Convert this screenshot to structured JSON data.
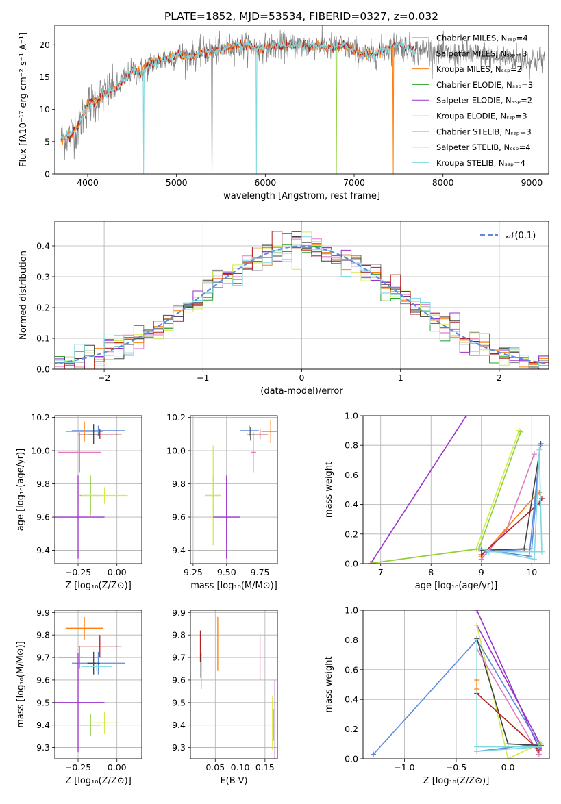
{
  "title": "PLATE=1852, MJD=53534, FIBERID=0327, z=0.032",
  "colors": {
    "Chabrier MILES": "#808080",
    "Salpeter MILES": "#e377c2",
    "Kroupa MILES": "#ff7f0e",
    "Chabrier ELODIE": "#2ca02c",
    "Salpeter ELODIE": "#9932cc",
    "Kroupa ELODIE": "#d4ec4a",
    "Chabrier STELIB": "#404040",
    "Salpeter STELIB": "#b22222",
    "Kroupa STELIB": "#7fd8e0",
    "blue": "#5b8bdc",
    "green": "#8fcf3c"
  },
  "chart_data": [
    {
      "id": "spectrum",
      "type": "line",
      "xlabel": "wavelength [Angstrom, rest frame]",
      "ylabel": "Flux [f$_\\lambda$10$^{-17}$ erg cm$^{-2}$ s$^{-1}$ A$^{-1}$]",
      "xlim": [
        3630,
        9190
      ],
      "ylim": [
        0,
        23
      ],
      "xticks": [
        4000,
        5000,
        6000,
        7000,
        8000,
        9000
      ],
      "yticks": [
        0,
        5,
        10,
        15,
        20
      ],
      "legend_loc": "upper right",
      "legend": [
        {
          "label": "Chabrier MILES, N$_{SSP}$=4",
          "color": "#808080"
        },
        {
          "label": "Salpeter MILES, N$_{SSP}$=3",
          "color": "#e377c2"
        },
        {
          "label": "Kroupa MILES, N$_{SSP}$=2",
          "color": "#ff7f0e"
        },
        {
          "label": "Chabrier ELODIE, N$_{SSP}$=3",
          "color": "#2ca02c"
        },
        {
          "label": "Salpeter ELODIE, N$_{SSP}$=2",
          "color": "#9932cc"
        },
        {
          "label": "Kroupa ELODIE, N$_{SSP}$=3",
          "color": "#d4ec4a"
        },
        {
          "label": "Chabrier STELIB, N$_{SSP}$=3",
          "color": "#404040"
        },
        {
          "label": "Salpeter STELIB, N$_{SSP}$=4",
          "color": "#b22222"
        },
        {
          "label": "Kroupa STELIB, N$_{SSP}$=4",
          "color": "#7fd8e0"
        }
      ],
      "continuum": {
        "x": [
          3700,
          3800,
          3900,
          4000,
          4100,
          4200,
          4300,
          4400,
          4500,
          4600,
          4700,
          4800,
          4900,
          5000,
          5100,
          5200,
          5300,
          5400,
          5500,
          5600,
          5700,
          5800,
          5900,
          6000,
          6100,
          6200,
          6300,
          6400,
          6500,
          6600,
          6700,
          6800,
          6900,
          7000,
          7100,
          7200,
          7300,
          7400,
          7500,
          7600,
          7700,
          7800,
          7900,
          8000,
          8100,
          8200,
          8300,
          8400,
          8500,
          8600,
          8700,
          8800,
          8900,
          9000,
          9100,
          9150
        ],
        "y": [
          5.5,
          6.0,
          7.5,
          10.8,
          11.5,
          12.5,
          13.0,
          14.5,
          15.8,
          15.8,
          17.0,
          17.4,
          17.8,
          18.5,
          18.3,
          18.2,
          18.9,
          19.0,
          19.2,
          19.6,
          19.8,
          20.0,
          19.3,
          19.5,
          19.7,
          19.8,
          19.8,
          19.9,
          19.7,
          19.9,
          19.6,
          19.7,
          19.8,
          19.2,
          18.5,
          18.3,
          19.0,
          19.6,
          20.0,
          19.6,
          19.0,
          19.3,
          19.0,
          18.8,
          18.2,
          18.5,
          18.6,
          18.2,
          18.3,
          18.0,
          17.9,
          18.1,
          17.7,
          17.6,
          17.8,
          17.5
        ]
      },
      "data_range": [
        3700,
        9150
      ],
      "model_ranges": [
        [
          3700,
          7450
        ],
        [
          3700,
          7700
        ],
        [
          3700,
          7700
        ]
      ],
      "noise_sigma": 1.2,
      "dips": [
        {
          "x": 4630,
          "color": "#7fd8e0"
        },
        {
          "x": 5400,
          "color": "#808080"
        },
        {
          "x": 5900,
          "color": "#7fd8e0"
        },
        {
          "x": 6800,
          "color": "#8fcf3c"
        },
        {
          "x": 7440,
          "color": "#ff7f0e"
        }
      ]
    },
    {
      "id": "histogram",
      "type": "line",
      "xlabel": "(data-model)/error",
      "ylabel": "Normed distribution",
      "xlim": [
        -2.5,
        2.5
      ],
      "ylim": [
        0,
        0.48
      ],
      "xticks": [
        -2,
        -1,
        0,
        1,
        2
      ],
      "yticks": [
        0.0,
        0.1,
        0.2,
        0.3,
        0.4
      ],
      "grid": true,
      "legend_loc": "upper right",
      "legend": [
        {
          "label": "$\\mathcal{N}(0,1)$",
          "color": "#5b8bdc",
          "style": "dashed"
        }
      ],
      "bin_width": 0.1,
      "curve": "normal pdf, mean 0, sigma 1"
    },
    {
      "id": "age_vs_Z",
      "type": "scatter",
      "xlabel": "Z [log$_{10}$($Z/Z_\\odot$)]",
      "ylabel": "age  [log$_{10}$($age/yr$)]",
      "xlim": [
        -0.4,
        0.16
      ],
      "ylim": [
        9.32,
        10.21
      ],
      "xticks": [
        -0.25,
        0.0
      ],
      "yticks": [
        9.4,
        9.6,
        9.8,
        10.0,
        10.2
      ],
      "grid": true,
      "points": [
        {
          "x": -0.12,
          "y": 10.12,
          "xerr": 0.17,
          "yerr": 0.03,
          "color": "#5b8bdc"
        },
        {
          "x": -0.21,
          "y": 10.115,
          "xerr": 0.12,
          "yerr": 0.06,
          "color": "#ff7f0e"
        },
        {
          "x": -0.11,
          "y": 10.1,
          "xerr": 0.14,
          "yerr": 0.03,
          "color": "#b22222"
        },
        {
          "x": -0.15,
          "y": 10.1,
          "xerr": 0.04,
          "yerr": 0.06,
          "color": "#404040"
        },
        {
          "x": -0.24,
          "y": 9.99,
          "xerr": 0.14,
          "yerr": 0.12,
          "color": "#e377c2"
        },
        {
          "x": -0.17,
          "y": 9.73,
          "xerr": 0.07,
          "yerr": 0.12,
          "color": "#8fcf3c"
        },
        {
          "x": -0.08,
          "y": 9.73,
          "xerr": 0.15,
          "yerr": 0.05,
          "color": "#d4ec4a"
        },
        {
          "x": -0.25,
          "y": 9.6,
          "xerr": 0.17,
          "yerr": 0.25,
          "color": "#9932cc"
        }
      ]
    },
    {
      "id": "age_vs_mass",
      "type": "scatter",
      "xlabel": "mass [log$_{10}$($M/M_\\odot$)]",
      "ylabel": "",
      "xlim": [
        9.23,
        9.88
      ],
      "ylim": [
        9.32,
        10.21
      ],
      "xticks": [
        9.25,
        9.5,
        9.75
      ],
      "yticks": [
        9.4,
        9.6,
        9.8,
        10.0,
        10.2
      ],
      "grid": true,
      "points": [
        {
          "x": 9.67,
          "y": 10.12,
          "xerr": 0.07,
          "yerr": 0.03,
          "color": "#5b8bdc"
        },
        {
          "x": 9.83,
          "y": 10.115,
          "xerr": 0.07,
          "yerr": 0.07,
          "color": "#ff7f0e"
        },
        {
          "x": 9.75,
          "y": 10.1,
          "xerr": 0.06,
          "yerr": 0.03,
          "color": "#b22222"
        },
        {
          "x": 9.68,
          "y": 10.1,
          "xerr": 0.03,
          "yerr": 0.04,
          "color": "#404040"
        },
        {
          "x": 9.7,
          "y": 9.99,
          "xerr": 0.02,
          "yerr": 0.12,
          "color": "#e377c2"
        },
        {
          "x": 9.4,
          "y": 9.73,
          "xerr": 0.06,
          "yerr": 0.12,
          "color": "#8fcf3c"
        },
        {
          "x": 9.4,
          "y": 9.73,
          "xerr": 0.06,
          "yerr": 0.3,
          "color": "#d4ec4a"
        },
        {
          "x": 9.5,
          "y": 9.6,
          "xerr": 0.1,
          "yerr": 0.25,
          "color": "#9932cc"
        }
      ]
    },
    {
      "id": "weight_vs_age",
      "type": "line",
      "xlabel": "age  [log$_{10}$($age/yr$)]",
      "ylabel": "mass weight",
      "xlim": [
        6.65,
        10.35
      ],
      "ylim": [
        0,
        1
      ],
      "xticks": [
        7,
        8,
        9,
        10
      ],
      "yticks": [
        0.0,
        0.2,
        0.4,
        0.6,
        0.8,
        1.0
      ],
      "grid": true,
      "series": [
        {
          "color": "#9932cc",
          "x": [
            6.8,
            8.7
          ],
          "y": [
            0.0,
            1.0
          ]
        },
        {
          "color": "#d4ec4a",
          "x": [
            6.85,
            8.9,
            9.75
          ],
          "y": [
            0.005,
            0.1,
            0.9
          ]
        },
        {
          "color": "#8fcf3c",
          "x": [
            6.85,
            8.95,
            9.78
          ],
          "y": [
            0.005,
            0.1,
            0.89
          ]
        },
        {
          "color": "#e377c2",
          "x": [
            9.0,
            9.5,
            10.05
          ],
          "y": [
            0.03,
            0.23,
            0.74
          ]
        },
        {
          "color": "#ff7f0e",
          "x": [
            9.0,
            10.1,
            10.15
          ],
          "y": [
            0.05,
            0.47,
            0.48
          ]
        },
        {
          "color": "#404040",
          "x": [
            9.0,
            9.85,
            10.18
          ],
          "y": [
            0.09,
            0.1,
            0.81
          ]
        },
        {
          "color": "#b22222",
          "x": [
            9.0,
            10.15,
            10.2
          ],
          "y": [
            0.06,
            0.41,
            0.44
          ]
        },
        {
          "color": "#5b8bdc",
          "x": [
            8.97,
            9.95,
            10.17,
            10.0,
            9.1
          ],
          "y": [
            0.1,
            0.05,
            0.8,
            0.1,
            0.08
          ]
        },
        {
          "color": "#7fd8e0",
          "x": [
            8.97,
            10.05,
            10.15,
            10.2,
            9.15
          ],
          "y": [
            0.1,
            0.03,
            0.77,
            0.08,
            0.08
          ]
        }
      ]
    },
    {
      "id": "mass_vs_Z",
      "type": "scatter",
      "xlabel": "Z [log$_{10}$($Z/Z_\\odot$)]",
      "ylabel": "mass [log$_{10}$($M/M_\\odot$)]",
      "xlim": [
        -0.4,
        0.16
      ],
      "ylim": [
        9.25,
        9.91
      ],
      "xticks": [
        -0.25,
        0.0
      ],
      "yticks": [
        9.3,
        9.4,
        9.5,
        9.6,
        9.7,
        9.8,
        9.9
      ],
      "grid": true,
      "points": [
        {
          "x": -0.21,
          "y": 9.83,
          "xerr": 0.12,
          "yerr": 0.05,
          "color": "#ff7f0e"
        },
        {
          "x": -0.11,
          "y": 9.75,
          "xerr": 0.14,
          "yerr": 0.05,
          "color": "#b22222"
        },
        {
          "x": -0.24,
          "y": 9.7,
          "xerr": 0.14,
          "yerr": 0.05,
          "color": "#e377c2"
        },
        {
          "x": -0.12,
          "y": 9.675,
          "xerr": 0.17,
          "yerr": 0.05,
          "color": "#5b8bdc"
        },
        {
          "x": -0.15,
          "y": 9.675,
          "xerr": 0.04,
          "yerr": 0.05,
          "color": "#404040"
        },
        {
          "x": -0.13,
          "y": 9.66,
          "xerr": 0.1,
          "yerr": 0.02,
          "color": "#7fd8e0"
        },
        {
          "x": -0.25,
          "y": 9.5,
          "xerr": 0.17,
          "yerr": 0.22,
          "color": "#9932cc"
        },
        {
          "x": -0.17,
          "y": 9.4,
          "xerr": 0.07,
          "yerr": 0.05,
          "color": "#8fcf3c"
        },
        {
          "x": -0.08,
          "y": 9.41,
          "xerr": 0.1,
          "yerr": 0.05,
          "color": "#d4ec4a"
        }
      ]
    },
    {
      "id": "mass_vs_ebv",
      "type": "scatter",
      "xlabel": "E(B-V)",
      "ylabel": "",
      "xlim": [
        0.0,
        0.175
      ],
      "ylim": [
        9.25,
        9.91
      ],
      "xticks": [
        0.05,
        0.1,
        0.15
      ],
      "yticks": [
        9.3,
        9.4,
        9.5,
        9.6,
        9.7,
        9.8,
        9.9
      ],
      "grid": true,
      "points": [
        {
          "x": 0.02,
          "y": 9.75,
          "xerr": 0.0,
          "yerr": 0.07,
          "color": "#b22222"
        },
        {
          "x": 0.021,
          "y": 9.66,
          "xerr": 0.0,
          "yerr": 0.05,
          "color": "#404040"
        },
        {
          "x": 0.022,
          "y": 9.64,
          "xerr": 0.0,
          "yerr": 0.08,
          "color": "#7fd8e0"
        },
        {
          "x": 0.055,
          "y": 9.76,
          "xerr": 0.0,
          "yerr": 0.12,
          "color": "#ff7f0e"
        },
        {
          "x": 0.14,
          "y": 9.7,
          "xerr": 0.0,
          "yerr": 0.1,
          "color": "#e377c2"
        },
        {
          "x": 0.165,
          "y": 9.41,
          "xerr": 0.0,
          "yerr": 0.12,
          "color": "#d4ec4a"
        },
        {
          "x": 0.167,
          "y": 9.4,
          "xerr": 0.0,
          "yerr": 0.07,
          "color": "#8fcf3c"
        },
        {
          "x": 0.17,
          "y": 9.4,
          "xerr": 0.0,
          "yerr": 0.2,
          "color": "#9932cc"
        }
      ]
    },
    {
      "id": "weight_vs_Z",
      "type": "line",
      "xlabel": "Z [log$_{10}$($Z/Z_\\odot$)]",
      "ylabel": "mass weight",
      "xlim": [
        -1.4,
        0.4
      ],
      "ylim": [
        0,
        1
      ],
      "xticks": [
        -1.0,
        -0.5,
        0.0
      ],
      "yticks": [
        0.0,
        0.2,
        0.4,
        0.6,
        0.8,
        1.0
      ],
      "grid": true,
      "series": [
        {
          "color": "#9932cc",
          "x": [
            -0.3,
            0.3,
            0.32,
            -0.3
          ],
          "y": [
            1.0,
            0.07,
            0.09,
            0.9
          ]
        },
        {
          "color": "#d4ec4a",
          "x": [
            -0.3,
            0.0,
            0.3
          ],
          "y": [
            0.9,
            0.0,
            0.1
          ]
        },
        {
          "color": "#5b8bdc",
          "x": [
            -1.3,
            -0.3,
            0.3,
            -0.3
          ],
          "y": [
            0.03,
            0.8,
            0.1,
            0.05
          ]
        },
        {
          "color": "#404040",
          "x": [
            -0.3,
            0.0,
            0.3
          ],
          "y": [
            0.81,
            0.1,
            0.09
          ]
        },
        {
          "color": "#e377c2",
          "x": [
            -0.3,
            0.3
          ],
          "y": [
            0.74,
            0.03
          ]
        },
        {
          "color": "#b22222",
          "x": [
            -0.3,
            0.3
          ],
          "y": [
            0.44,
            0.06
          ]
        },
        {
          "color": "#7fd8e0",
          "x": [
            -0.3,
            -0.3,
            0.3,
            -0.3
          ],
          "y": [
            0.8,
            0.05,
            0.08,
            0.08
          ]
        },
        {
          "color": "#8fcf3c",
          "x": [
            0.3,
            0.32
          ],
          "y": [
            0.1,
            0.1
          ]
        },
        {
          "color": "#ff7f0e",
          "x": [
            -0.3,
            -0.3
          ],
          "y": [
            0.47,
            0.53
          ]
        }
      ]
    }
  ]
}
